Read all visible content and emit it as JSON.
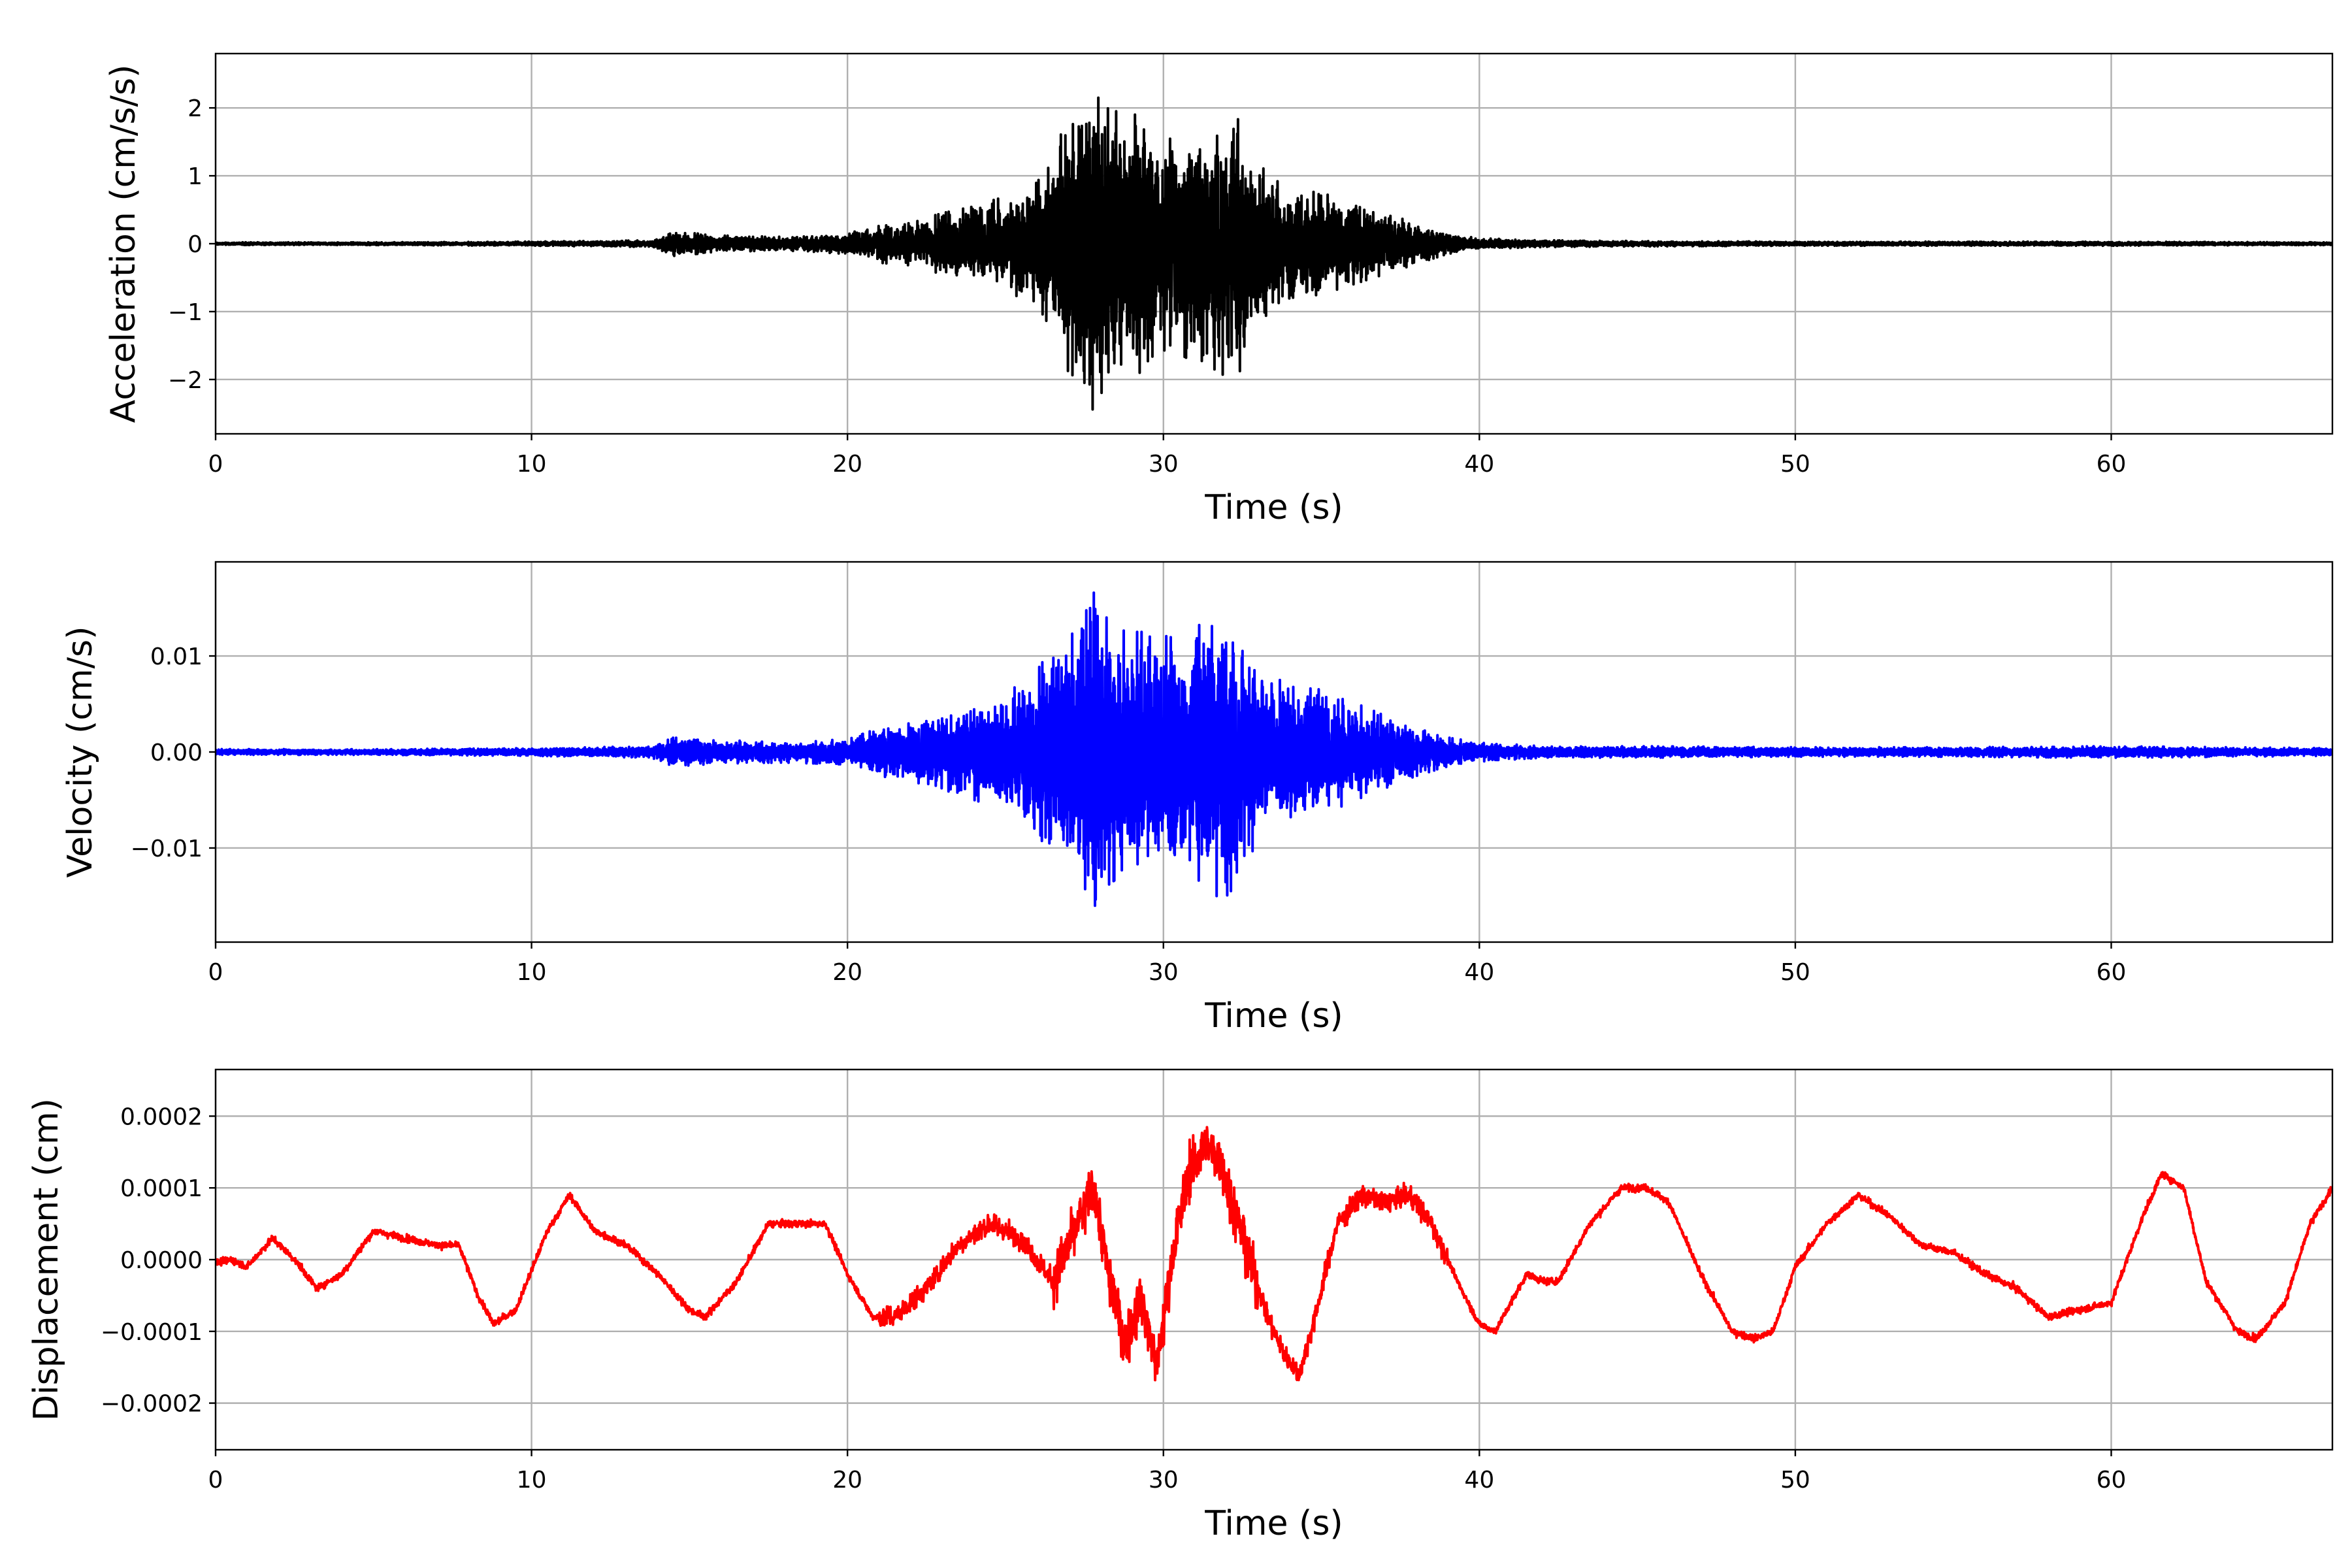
{
  "chart_data": [
    {
      "type": "line",
      "xlabel": "Time (s)",
      "ylabel": "Acceleration (cm/s/s)",
      "xlim": [
        0,
        67
      ],
      "ylim": [
        -2.8,
        2.8
      ],
      "xticks": [
        0,
        10,
        20,
        30,
        40,
        50,
        60
      ],
      "xtick_labels": [
        "0",
        "10",
        "20",
        "30",
        "40",
        "50",
        "60"
      ],
      "yticks": [
        2,
        1,
        0,
        -1,
        -2
      ],
      "ytick_labels": [
        "2",
        "1",
        "0",
        "−1",
        "−2"
      ],
      "grid": true,
      "color": "#000000",
      "series": [
        {
          "x": [
            0,
            5,
            10,
            13.8,
            14.5,
            16,
            18,
            20,
            21,
            22,
            23,
            24,
            25,
            26,
            26.5,
            27,
            27.5,
            27.8,
            28.2,
            28.8,
            29.5,
            30.2,
            30.8,
            31.2,
            31.6,
            32,
            32.4,
            33,
            34,
            35,
            36,
            37,
            38,
            39,
            40,
            42,
            45,
            50,
            55,
            60,
            67
          ],
          "amplitude": [
            0.02,
            0.02,
            0.03,
            0.05,
            0.18,
            0.12,
            0.1,
            0.15,
            0.28,
            0.32,
            0.45,
            0.55,
            0.7,
            0.9,
            1.3,
            1.9,
            2.05,
            2.5,
            2.0,
            1.9,
            1.9,
            1.55,
            1.7,
            1.8,
            1.9,
            2.0,
            1.9,
            1.2,
            0.8,
            0.75,
            0.6,
            0.45,
            0.3,
            0.15,
            0.08,
            0.05,
            0.04,
            0.03,
            0.03,
            0.03,
            0.02
          ]
        }
      ]
    },
    {
      "type": "line",
      "xlabel": "Time (s)",
      "ylabel": "Velocity (cm/s)",
      "xlim": [
        0,
        67
      ],
      "ylim": [
        -0.0198,
        0.0198
      ],
      "xticks": [
        0,
        10,
        20,
        30,
        40,
        50,
        60
      ],
      "xtick_labels": [
        "0",
        "10",
        "20",
        "30",
        "40",
        "50",
        "60"
      ],
      "yticks": [
        0.01,
        0.0,
        -0.01
      ],
      "ytick_labels": [
        "0.01",
        "0.00",
        "−0.01"
      ],
      "grid": true,
      "color": "#0000ff",
      "series": [
        {
          "x": [
            0,
            5,
            10,
            13.8,
            14.5,
            16,
            18,
            20,
            21,
            22,
            23,
            24,
            25,
            26,
            26.5,
            27,
            27.5,
            27.8,
            28.2,
            28.8,
            29.5,
            30.2,
            30.8,
            31.2,
            31.6,
            32,
            32.4,
            33,
            34,
            35,
            36,
            37,
            38,
            39,
            40,
            42,
            45,
            50,
            55,
            60,
            67
          ],
          "amplitude": [
            0.0003,
            0.0003,
            0.0004,
            0.0006,
            0.0015,
            0.0012,
            0.0011,
            0.0013,
            0.0025,
            0.003,
            0.004,
            0.005,
            0.006,
            0.0085,
            0.011,
            0.013,
            0.014,
            0.0178,
            0.014,
            0.0125,
            0.0125,
            0.012,
            0.011,
            0.014,
            0.015,
            0.015,
            0.0135,
            0.009,
            0.0068,
            0.0065,
            0.0052,
            0.0038,
            0.0025,
            0.0015,
            0.001,
            0.0006,
            0.0006,
            0.0005,
            0.0005,
            0.0006,
            0.0004
          ]
        }
      ]
    },
    {
      "type": "line",
      "xlabel": "Time (s)",
      "ylabel": "Displacement (cm)",
      "xlim": [
        0,
        67
      ],
      "ylim": [
        -0.000265,
        0.000265
      ],
      "xticks": [
        0,
        10,
        20,
        30,
        40,
        50,
        60
      ],
      "xtick_labels": [
        "0",
        "10",
        "20",
        "30",
        "40",
        "50",
        "60"
      ],
      "yticks": [
        0.0002,
        0.0001,
        0.0,
        -0.0001,
        -0.0002
      ],
      "ytick_labels": [
        "0.0002",
        "0.0001",
        "0.0000",
        "−0.0001",
        "−0.0002"
      ],
      "grid": true,
      "color": "#ff0000",
      "series": [
        {
          "x": [
            0,
            0.5,
            1,
            1.8,
            2.5,
            3.2,
            4,
            5,
            6,
            7,
            7.7,
            8.3,
            8.8,
            9.5,
            10.5,
            11.2,
            12,
            13,
            14,
            15,
            15.5,
            16.5,
            17.5,
            18.5,
            19.3,
            20,
            20.8,
            21.5,
            22.5,
            23.5,
            24.5,
            25.5,
            26.5,
            27.2,
            27.8,
            28.3,
            28.8,
            29.3,
            29.8,
            30.3,
            30.8,
            31.3,
            31.8,
            32.5,
            33.3,
            33.8,
            34.3,
            34.8,
            35.5,
            36.3,
            37,
            37.8,
            38.5,
            39.3,
            40,
            40.5,
            41.5,
            42,
            42.5,
            43.5,
            44.5,
            45.3,
            46,
            47,
            48,
            48.7,
            49.3,
            50,
            51,
            52,
            53,
            54,
            55,
            56,
            57,
            58,
            59,
            60,
            61,
            61.6,
            62.3,
            63,
            64,
            64.6,
            65.5,
            66.3,
            67
          ],
          "y": [
            -5e-06,
            0.0,
            -1e-05,
            3e-05,
            0.0,
            -4e-05,
            -2e-05,
            4e-05,
            3e-05,
            2e-05,
            2e-05,
            -5e-05,
            -9e-05,
            -7e-05,
            4e-05,
            9e-05,
            4e-05,
            2e-05,
            -2e-05,
            -7e-05,
            -8e-05,
            -3e-05,
            5e-05,
            5e-05,
            5e-05,
            -2e-05,
            -8e-05,
            -8e-05,
            -4e-05,
            2e-05,
            5e-05,
            3e-05,
            -3e-05,
            4e-05,
            0.0001,
            -3e-05,
            -0.00012,
            -5e-05,
            -0.00015,
            1e-05,
            0.00012,
            0.00016,
            0.00014,
            3e-05,
            -8e-05,
            -0.00013,
            -0.00016,
            -8e-05,
            5e-05,
            9e-05,
            8e-05,
            9e-05,
            5e-05,
            -3e-05,
            -9e-05,
            -0.0001,
            -2e-05,
            -3e-05,
            -3e-05,
            5e-05,
            0.0001,
            0.0001,
            8e-05,
            -2e-05,
            -0.0001,
            -0.00011,
            -0.0001,
            -1e-05,
            5e-05,
            9e-05,
            6e-05,
            2e-05,
            1e-05,
            -2e-05,
            -4e-05,
            -8e-05,
            -7e-05,
            -6e-05,
            6e-05,
            0.00012,
            0.0001,
            -3e-05,
            -0.0001,
            -0.00011,
            -6e-05,
            5e-05,
            0.0001
          ]
        }
      ]
    }
  ]
}
